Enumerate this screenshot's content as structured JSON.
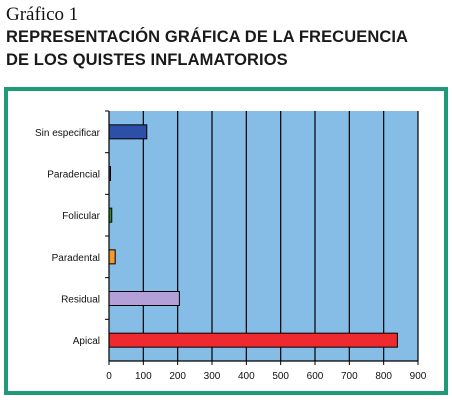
{
  "figure_label": "Gráfico 1",
  "title_lines": [
    "REPRESENTACIÓN GRÁFICA DE LA FRECUENCIA",
    "DE LOS QUISTES INFLAMATORIOS"
  ],
  "colors": {
    "frame": "#1f9a79",
    "plot_background": "#86bde6",
    "gridline": "#000000"
  },
  "chart_data": {
    "type": "bar",
    "orientation": "horizontal",
    "title": "",
    "xlabel": "",
    "ylabel": "",
    "categories": [
      "Sin especificar",
      "Paradencial",
      "Folicular",
      "Paradental",
      "Residual",
      "Apical"
    ],
    "values": [
      110,
      2,
      8,
      18,
      205,
      840
    ],
    "bar_colors": [
      "#2e4fa8",
      "#2e4fa8",
      "#2f8f3a",
      "#f29a2e",
      "#b4a0d8",
      "#ee2a2f"
    ],
    "xlim": [
      0,
      900
    ],
    "xticks": [
      0,
      100,
      200,
      300,
      400,
      500,
      600,
      700,
      800,
      900
    ],
    "grid": "vertical",
    "legend": "none"
  }
}
